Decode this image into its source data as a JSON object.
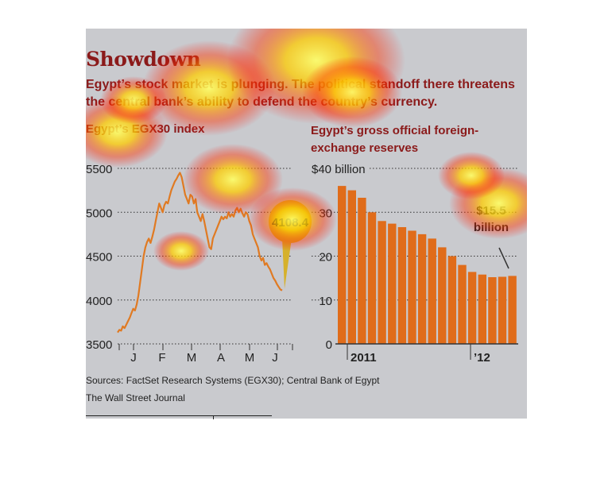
{
  "title": "Showdown",
  "subtitle": [
    "Egypt’s stock market is plunging. The political standoff there threatens",
    "the central bank’s ability to defend the country’s currency."
  ],
  "footer": {
    "sources": "Sources: FactSet Research Systems (EGX30); Central Bank of Egypt",
    "credit": "The Wall Street Journal"
  },
  "colors": {
    "accent": "#8b1a1a",
    "line": "#e07a22",
    "bar": "#e06c1a",
    "callout": "#d6b12b"
  },
  "chart_data": [
    {
      "type": "line",
      "title": "Egypt’s EGX30 index",
      "ylim": [
        3500,
        5500
      ],
      "yticks": [
        5500,
        5000,
        4500,
        4000,
        3500
      ],
      "xtick_labels": [
        "J",
        "F",
        "M",
        "A",
        "M",
        "J"
      ],
      "grid": true,
      "x": [
        0,
        1,
        2,
        3,
        4,
        5,
        6,
        7,
        8,
        9,
        10,
        11,
        12,
        13,
        14,
        15,
        16,
        17,
        18,
        19,
        20,
        21,
        22,
        23,
        24,
        25,
        26,
        27,
        28,
        29,
        30,
        31,
        32,
        33,
        34,
        35,
        36,
        37,
        38,
        39,
        40,
        41,
        42,
        43,
        44,
        45,
        46,
        47,
        48,
        49,
        50,
        51,
        52,
        53,
        54,
        55,
        56,
        57,
        58,
        59,
        60,
        61,
        62,
        63,
        64,
        65,
        66,
        67,
        68,
        69,
        70,
        71,
        72,
        73,
        74,
        75,
        76,
        77,
        78,
        79,
        80,
        81,
        82,
        83,
        84,
        85,
        86,
        87,
        88,
        89,
        90,
        91,
        92,
        93,
        94,
        95,
        96,
        97,
        98,
        99,
        100,
        101,
        102,
        103,
        104,
        105
      ],
      "values": [
        3630,
        3660,
        3650,
        3700,
        3680,
        3720,
        3760,
        3800,
        3850,
        3900,
        3880,
        3950,
        4050,
        4200,
        4350,
        4500,
        4600,
        4660,
        4700,
        4650,
        4720,
        4800,
        4900,
        5000,
        5100,
        5050,
        5000,
        5080,
        5120,
        5100,
        5180,
        5250,
        5300,
        5350,
        5380,
        5420,
        5450,
        5400,
        5300,
        5200,
        5150,
        5100,
        5200,
        5180,
        5100,
        5150,
        5000,
        4950,
        4900,
        4980,
        4900,
        4800,
        4700,
        4600,
        4580,
        4700,
        4750,
        4800,
        4850,
        4900,
        4950,
        4920,
        4950,
        4930,
        5000,
        4950,
        4980,
        4950,
        5020,
        5050,
        5000,
        5040,
        4990,
        4950,
        5000,
        4980,
        4900,
        4850,
        4750,
        4700,
        4650,
        4600,
        4500,
        4450,
        4480,
        4400,
        4420,
        4380,
        4350,
        4300,
        4250,
        4220,
        4180,
        4150,
        4120,
        4110,
        4108.4,
        4108.4,
        4108.4,
        4108.4,
        4108.4,
        4108.4,
        4108.4,
        4108.4,
        4108.4,
        4108.4
      ],
      "callout": "4108.4"
    },
    {
      "type": "bar",
      "title": [
        "Egypt’s gross official foreign-",
        "exchange reserves"
      ],
      "ylim": [
        0,
        40
      ],
      "yticks": [
        40,
        30,
        20,
        10,
        0
      ],
      "ytick_labels": [
        "$40 billion",
        "30",
        "20",
        "10",
        "0"
      ],
      "xtick_labels": [
        "2011",
        "’12"
      ],
      "grid": true,
      "values": [
        36,
        35,
        33.3,
        30,
        28,
        27.4,
        26.6,
        25.8,
        25,
        24,
        22,
        20,
        18,
        16.4,
        15.8,
        15.2,
        15.3,
        15.5
      ],
      "callout": [
        "$15.5",
        "billion"
      ]
    }
  ]
}
